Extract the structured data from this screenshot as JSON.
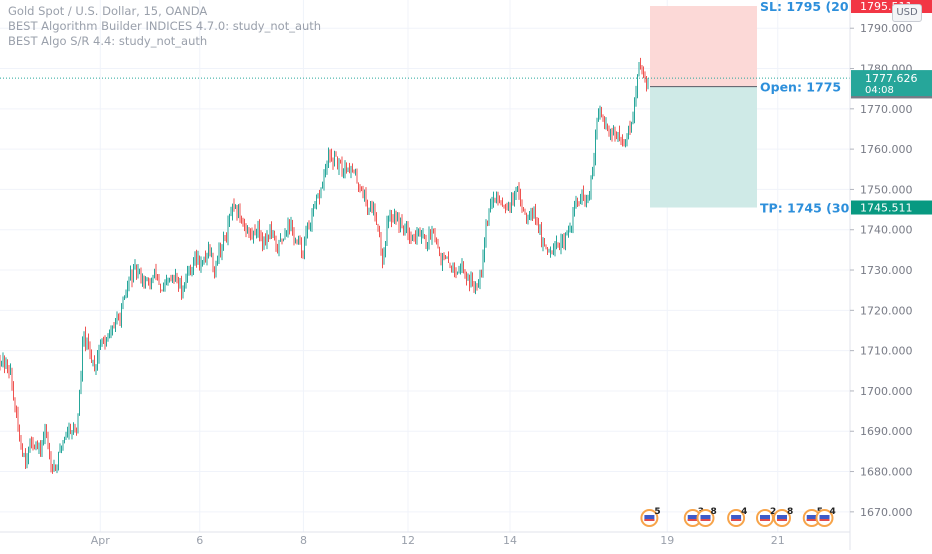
{
  "legend": {
    "symbol_line": "Gold Spot / U.S. Dollar, 15, OANDA",
    "study_1": "BEST Algorithm Builder INDICES 4.7.0: study_not_auth",
    "study_2": "BEST Algo S/R 4.4: study_not_auth"
  },
  "currency": "USD",
  "colors": {
    "up": "#26a69a",
    "down": "#ef5350",
    "sl_zone": "#fcd9d7",
    "tp_zone": "#cfeae7",
    "sl_tag": "#f23645",
    "tp_tag": "#089981",
    "last_tag": "#26a69a",
    "open_tag": "#787b86",
    "position_text": "#2d8fdb"
  },
  "chart_data": {
    "type": "candlestick",
    "symbol": "Gold Spot / U.S. Dollar",
    "interval": "15",
    "source": "OANDA",
    "ylim": [
      1665,
      1797
    ],
    "yticks": [
      1670,
      1680,
      1690,
      1700,
      1710,
      1720,
      1730,
      1740,
      1750,
      1760,
      1770,
      1780,
      1790
    ],
    "ytick_labels": [
      "1670.000",
      "1680.000",
      "1690.000",
      "1700.000",
      "1710.000",
      "1720.000",
      "1730.000",
      "1740.000",
      "1750.000",
      "1760.000",
      "1770.000",
      "1780.000",
      "1790.000"
    ],
    "x_ticks": [
      {
        "label": "Apr",
        "frac": 0.118
      },
      {
        "label": "6",
        "frac": 0.235
      },
      {
        "label": "8",
        "frac": 0.357
      },
      {
        "label": "12",
        "frac": 0.48
      },
      {
        "label": "14",
        "frac": 0.6
      },
      {
        "label": "19",
        "frac": 0.785
      },
      {
        "label": "21",
        "frac": 0.915
      }
    ],
    "price_path": [
      [
        0.0,
        1708
      ],
      [
        0.012,
        1705
      ],
      [
        0.018,
        1695
      ],
      [
        0.024,
        1687
      ],
      [
        0.03,
        1683
      ],
      [
        0.038,
        1688
      ],
      [
        0.046,
        1685
      ],
      [
        0.054,
        1690
      ],
      [
        0.06,
        1682
      ],
      [
        0.066,
        1681
      ],
      [
        0.074,
        1688
      ],
      [
        0.082,
        1691
      ],
      [
        0.09,
        1690
      ],
      [
        0.094,
        1700
      ],
      [
        0.098,
        1714
      ],
      [
        0.104,
        1710
      ],
      [
        0.112,
        1706
      ],
      [
        0.118,
        1712
      ],
      [
        0.126,
        1712
      ],
      [
        0.132,
        1716
      ],
      [
        0.14,
        1718
      ],
      [
        0.146,
        1722
      ],
      [
        0.152,
        1728
      ],
      [
        0.16,
        1730
      ],
      [
        0.168,
        1728
      ],
      [
        0.176,
        1726
      ],
      [
        0.184,
        1730
      ],
      [
        0.19,
        1724
      ],
      [
        0.198,
        1727
      ],
      [
        0.206,
        1728
      ],
      [
        0.214,
        1725
      ],
      [
        0.222,
        1730
      ],
      [
        0.23,
        1733
      ],
      [
        0.238,
        1731
      ],
      [
        0.246,
        1736
      ],
      [
        0.252,
        1730
      ],
      [
        0.258,
        1735
      ],
      [
        0.266,
        1738
      ],
      [
        0.272,
        1745
      ],
      [
        0.28,
        1744
      ],
      [
        0.288,
        1741
      ],
      [
        0.296,
        1738
      ],
      [
        0.302,
        1741
      ],
      [
        0.31,
        1737
      ],
      [
        0.318,
        1740
      ],
      [
        0.326,
        1735
      ],
      [
        0.332,
        1738
      ],
      [
        0.34,
        1742
      ],
      [
        0.348,
        1737
      ],
      [
        0.356,
        1735
      ],
      [
        0.362,
        1740
      ],
      [
        0.37,
        1745
      ],
      [
        0.378,
        1750
      ],
      [
        0.386,
        1758
      ],
      [
        0.394,
        1757
      ],
      [
        0.402,
        1755
      ],
      [
        0.41,
        1756
      ],
      [
        0.418,
        1753
      ],
      [
        0.426,
        1750
      ],
      [
        0.432,
        1746
      ],
      [
        0.44,
        1745
      ],
      [
        0.446,
        1740
      ],
      [
        0.45,
        1732
      ],
      [
        0.456,
        1742
      ],
      [
        0.464,
        1744
      ],
      [
        0.472,
        1741
      ],
      [
        0.48,
        1740
      ],
      [
        0.488,
        1738
      ],
      [
        0.496,
        1740
      ],
      [
        0.502,
        1736
      ],
      [
        0.51,
        1741
      ],
      [
        0.518,
        1733
      ],
      [
        0.526,
        1732
      ],
      [
        0.534,
        1730
      ],
      [
        0.542,
        1731
      ],
      [
        0.55,
        1728
      ],
      [
        0.558,
        1726
      ],
      [
        0.566,
        1730
      ],
      [
        0.572,
        1742
      ],
      [
        0.578,
        1747
      ],
      [
        0.586,
        1748
      ],
      [
        0.594,
        1746
      ],
      [
        0.602,
        1747
      ],
      [
        0.61,
        1749
      ],
      [
        0.618,
        1744
      ],
      [
        0.626,
        1745
      ],
      [
        0.632,
        1743
      ],
      [
        0.638,
        1736
      ],
      [
        0.646,
        1735
      ],
      [
        0.654,
        1737
      ],
      [
        0.662,
        1736
      ],
      [
        0.67,
        1740
      ],
      [
        0.676,
        1746
      ],
      [
        0.684,
        1748
      ],
      [
        0.692,
        1747
      ],
      [
        0.698,
        1755
      ],
      [
        0.702,
        1768
      ],
      [
        0.708,
        1768
      ],
      [
        0.716,
        1765
      ],
      [
        0.724,
        1764
      ],
      [
        0.732,
        1761
      ],
      [
        0.74,
        1765
      ],
      [
        0.746,
        1770
      ],
      [
        0.752,
        1781
      ],
      [
        0.758,
        1779
      ],
      [
        0.764,
        1774
      ]
    ],
    "last_price": "1777.626",
    "countdown": "04:08",
    "position": {
      "stop_loss_label": "SL: 1795 (20",
      "stop_loss_price": 1795.511,
      "stop_loss_tag": "1795.511",
      "open_label": "Open: 1775",
      "open_price": 1775.511,
      "open_tag": "1775.511",
      "take_profit_label": "TP: 1745 (30",
      "take_profit_price": 1745.511,
      "take_profit_tag": "1745.511"
    },
    "events": [
      {
        "frac": 0.764,
        "count": "5"
      },
      {
        "frac": 0.815,
        "count": "3"
      },
      {
        "frac": 0.83,
        "count": "8"
      },
      {
        "frac": 0.866,
        "count": "4"
      },
      {
        "frac": 0.9,
        "count": "2"
      },
      {
        "frac": 0.92,
        "count": "8"
      },
      {
        "frac": 0.955,
        "count": "5"
      },
      {
        "frac": 0.97,
        "count": "4"
      }
    ]
  }
}
